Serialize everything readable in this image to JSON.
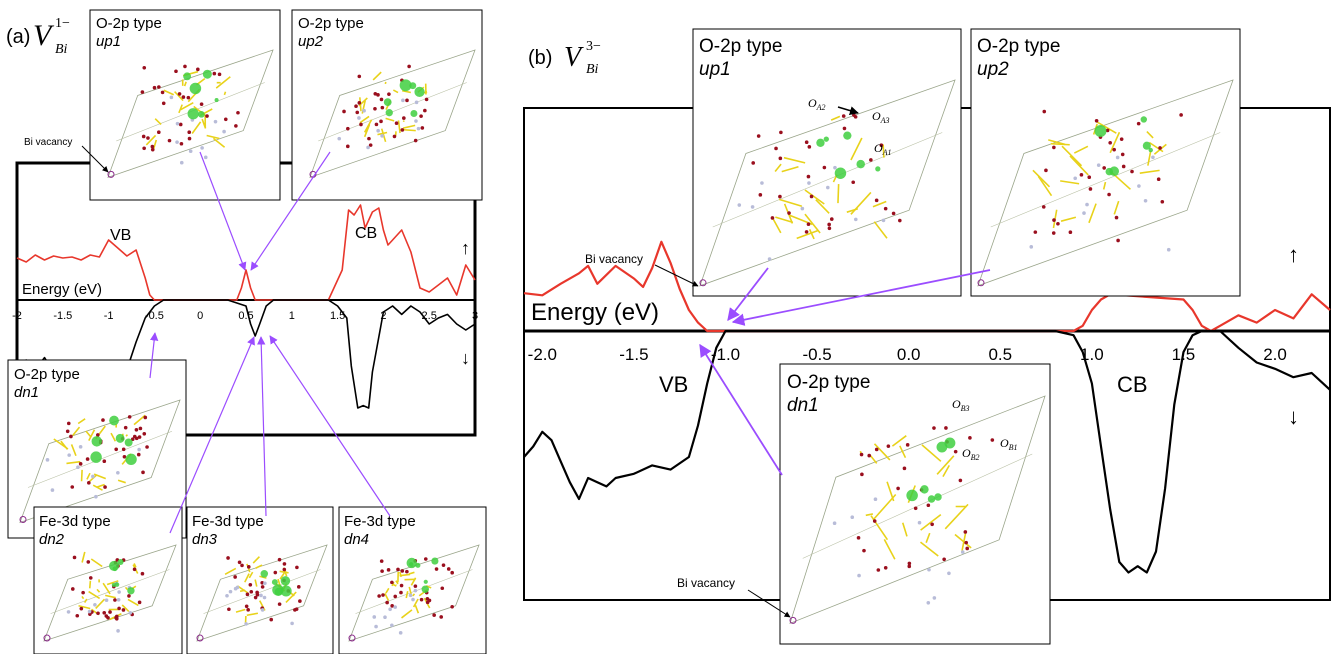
{
  "panel_a": {
    "label": "(a)",
    "defect_symbol": "V",
    "defect_sub": "Bi",
    "defect_sup": "1−",
    "axis_label": "Energy (eV)",
    "ticks": [
      "-2",
      "-1.5",
      "-1",
      "-0.5",
      "0",
      "0.5",
      "1",
      "1.5",
      "2",
      "2.5",
      "3"
    ],
    "vb_label": "VB",
    "cb_label": "CB",
    "up_arrow": "↑",
    "down_arrow": "↓",
    "insets": [
      {
        "title": "O-2p type",
        "subtitle": "up1",
        "vacancy_label": "Bi vacancy"
      },
      {
        "title": "O-2p type",
        "subtitle": "up2"
      },
      {
        "title": "O-2p type",
        "subtitle": "dn1"
      },
      {
        "title": "Fe-3d type",
        "subtitle": "dn2"
      },
      {
        "title": "Fe-3d type",
        "subtitle": "dn3"
      },
      {
        "title": "Fe-3d type",
        "subtitle": "dn4"
      }
    ]
  },
  "panel_b": {
    "label": "(b)",
    "defect_symbol": "V",
    "defect_sub": "Bi",
    "defect_sup": "3−",
    "axis_label": "Energy (eV)",
    "ticks": [
      "-2.0",
      "-1.5",
      "-1.0",
      "-0.5",
      "0.0",
      "0.5",
      "1.0",
      "1.5",
      "2.0"
    ],
    "vb_label": "VB",
    "cb_label": "CB",
    "up_arrow": "↑",
    "down_arrow": "↓",
    "insets": [
      {
        "title": "O-2p type",
        "subtitle": "up1",
        "vacancy_label": "Bi vacancy",
        "atom_labels": [
          {
            "base": "O",
            "sub": "A2"
          },
          {
            "base": "O",
            "sub": "A3"
          },
          {
            "base": "O",
            "sub": "A1"
          }
        ]
      },
      {
        "title": "O-2p type",
        "subtitle": "up2"
      },
      {
        "title": "O-2p type",
        "subtitle": "dn1",
        "vacancy_label": "Bi vacancy",
        "atom_labels": [
          {
            "base": "O",
            "sub": "B3"
          },
          {
            "base": "O",
            "sub": "B2"
          },
          {
            "base": "O",
            "sub": "B1"
          }
        ]
      }
    ]
  },
  "colors": {
    "spin_up": "#e8372c",
    "spin_down": "#000000",
    "pointer": "#9b4dff",
    "bond": "#e8d21a",
    "oxygen": "#9a0f1e",
    "fe": "#b8bcd8",
    "density": "#3fcf3f"
  },
  "chart_data": [
    {
      "type": "line",
      "panel": "(a)",
      "xlabel": "Energy (eV)",
      "xlim": [
        -2,
        3
      ],
      "series": [
        {
          "spin": "up",
          "x": [
            -2.0,
            -1.9,
            -1.8,
            -1.7,
            -1.6,
            -1.5,
            -1.4,
            -1.3,
            -1.2,
            -1.1,
            -1.0,
            -0.9,
            -0.8,
            -0.7,
            -0.6,
            -0.55,
            -0.5,
            -0.2,
            0.3,
            0.4,
            0.45,
            0.5,
            0.55,
            0.6,
            0.7,
            1.4,
            1.55,
            1.62,
            1.68,
            1.75,
            1.8,
            1.88,
            1.95,
            2.0,
            2.05,
            2.1,
            2.2,
            2.3,
            2.4,
            2.5,
            2.6,
            2.7,
            2.8,
            2.9,
            3.0
          ],
          "y": [
            0.42,
            0.38,
            0.45,
            0.4,
            0.44,
            0.42,
            0.43,
            0.4,
            0.45,
            0.43,
            0.6,
            0.52,
            0.44,
            0.5,
            0.22,
            0.05,
            0.0,
            0.0,
            0.0,
            0.0,
            0.12,
            0.3,
            0.12,
            0.0,
            0.0,
            0.0,
            0.3,
            0.9,
            0.85,
            0.95,
            0.72,
            0.88,
            0.92,
            0.7,
            0.55,
            0.6,
            0.7,
            0.48,
            0.12,
            0.08,
            0.15,
            0.22,
            0.05,
            0.35,
            0.2
          ]
        },
        {
          "spin": "down",
          "x": [
            -2.0,
            -1.9,
            -1.8,
            -1.7,
            -1.6,
            -1.5,
            -1.4,
            -1.3,
            -1.2,
            -1.1,
            -1.0,
            -0.9,
            -0.8,
            -0.7,
            -0.6,
            -0.5,
            -0.4,
            -0.2,
            0.3,
            0.5,
            0.55,
            0.6,
            0.65,
            0.72,
            0.8,
            1.4,
            1.5,
            1.55,
            1.6,
            1.65,
            1.72,
            1.78,
            1.84,
            1.88,
            2.0,
            2.1,
            2.2,
            2.3,
            2.4,
            2.5,
            2.6,
            2.7,
            2.8,
            2.9,
            3.0
          ],
          "y": [
            -0.62,
            -0.5,
            -0.58,
            -0.48,
            -0.6,
            -0.52,
            -0.62,
            -0.54,
            -0.6,
            -0.56,
            -0.62,
            -0.55,
            -0.58,
            -0.35,
            -0.15,
            -0.05,
            0.0,
            0.0,
            0.0,
            -0.05,
            -0.2,
            -0.3,
            -0.2,
            -0.05,
            0.0,
            0.0,
            -0.05,
            -0.1,
            -0.15,
            -0.55,
            -0.9,
            -0.88,
            -0.9,
            -0.6,
            -0.1,
            -0.05,
            -0.12,
            -0.05,
            -0.1,
            -0.2,
            -0.15,
            -0.12,
            -0.2,
            -0.25,
            -0.2
          ]
        }
      ]
    },
    {
      "type": "line",
      "panel": "(b)",
      "xlabel": "Energy (eV)",
      "xlim": [
        -2.1,
        2.3
      ],
      "series": [
        {
          "spin": "up",
          "x": [
            -2.1,
            -2.0,
            -1.9,
            -1.8,
            -1.75,
            -1.7,
            -1.6,
            -1.5,
            -1.45,
            -1.4,
            -1.35,
            -1.3,
            -1.25,
            -1.2,
            -1.15,
            -1.1,
            -0.5,
            0.8,
            0.9,
            0.95,
            1.0,
            1.05,
            1.1,
            1.5,
            1.55,
            1.6,
            1.65,
            1.7,
            1.8,
            1.9,
            2.0,
            2.1,
            2.2,
            2.3
          ],
          "y": [
            0.36,
            0.34,
            0.45,
            0.55,
            0.62,
            0.45,
            0.62,
            0.5,
            0.42,
            0.6,
            0.85,
            0.65,
            0.4,
            0.2,
            0.08,
            0.0,
            0.0,
            0.0,
            0.0,
            0.05,
            0.2,
            0.3,
            0.35,
            0.3,
            0.2,
            0.05,
            0.0,
            0.05,
            0.15,
            0.08,
            0.2,
            0.12,
            0.35,
            0.2
          ]
        },
        {
          "spin": "down",
          "x": [
            -2.1,
            -2.05,
            -2.0,
            -1.95,
            -1.9,
            -1.85,
            -1.8,
            -1.75,
            -1.7,
            -1.65,
            -1.6,
            -1.5,
            -1.4,
            -1.3,
            -1.2,
            -1.15,
            -1.1,
            -1.05,
            -1.0,
            -0.9,
            0.8,
            0.9,
            0.95,
            1.0,
            1.05,
            1.1,
            1.15,
            1.2,
            1.25,
            1.3,
            1.35,
            1.4,
            1.45,
            1.5,
            1.55,
            1.6,
            1.7,
            1.8,
            1.9,
            2.0,
            2.1,
            2.2,
            2.3
          ],
          "y": [
            -0.6,
            -0.55,
            -0.48,
            -0.52,
            -0.62,
            -0.72,
            -0.8,
            -0.7,
            -0.72,
            -0.74,
            -0.7,
            -0.68,
            -0.64,
            -0.66,
            -0.6,
            -0.45,
            -0.25,
            -0.08,
            0.0,
            0.0,
            0.0,
            -0.02,
            -0.1,
            -0.25,
            -0.55,
            -0.85,
            -1.1,
            -1.15,
            -1.12,
            -1.15,
            -1.05,
            -0.75,
            -0.35,
            -0.1,
            -0.02,
            0.0,
            0.0,
            -0.08,
            -0.15,
            -0.18,
            -0.22,
            -0.2,
            -0.28
          ]
        }
      ]
    }
  ]
}
